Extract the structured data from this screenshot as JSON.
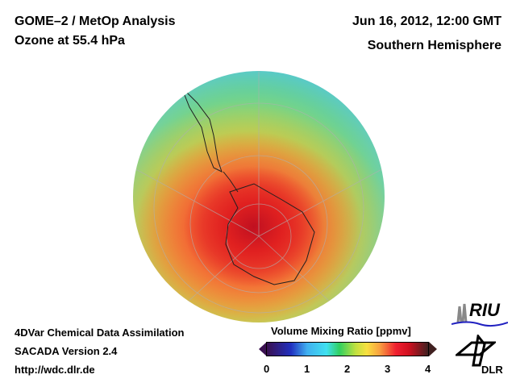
{
  "header": {
    "title_line1": "GOME–2 / MetOp Analysis",
    "title_line2": "Ozone at 55.4 hPa",
    "date": "Jun 16, 2012, 12:00 GMT",
    "region": "Southern Hemisphere"
  },
  "footer": {
    "line1": "4DVar Chemical Data Assimilation",
    "line2": "SACADA Version 2.4",
    "line3": "http://wdc.dlr.de"
  },
  "colorbar": {
    "title": "Volume Mixing Ratio [ppmv]",
    "ticks": [
      "0",
      "1",
      "2",
      "3",
      "4"
    ],
    "min": 0,
    "max": 4
  },
  "logos": {
    "riu": "RIU",
    "dlr": "DLR"
  }
}
